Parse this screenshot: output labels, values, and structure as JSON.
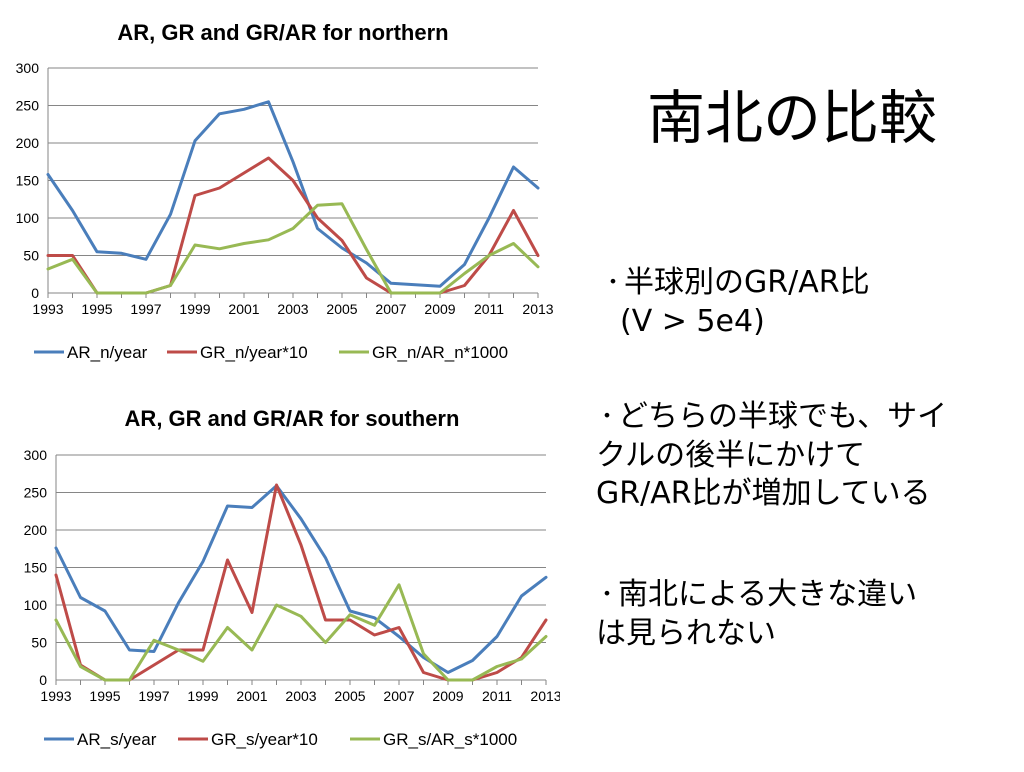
{
  "slide": {
    "title": "南北の比較",
    "bullet1_line1": "半球別のGR/AR比",
    "bullet1_line2": "(V > 5e4)",
    "bullet2_line1": "どちらの半球でも、サイ",
    "bullet2_line2": "クルの後半にかけて",
    "bullet2_line3": "GR/AR比が増加している",
    "bullet3_line1": "南北による大きな違い",
    "bullet3_line2": "は見られない",
    "bullet_marker": "・"
  },
  "chart_data": [
    {
      "type": "line",
      "title": "AR, GR and GR/AR for northern",
      "xlabel": "",
      "ylabel": "",
      "x": [
        1993,
        1994,
        1995,
        1996,
        1997,
        1998,
        1999,
        2000,
        2001,
        2002,
        2003,
        2004,
        2005,
        2006,
        2007,
        2008,
        2009,
        2010,
        2011,
        2012,
        2013
      ],
      "xticks": [
        "1993",
        "1995",
        "1997",
        "1999",
        "2001",
        "2003",
        "2005",
        "2007",
        "2009",
        "2011",
        "2013"
      ],
      "yticks": [
        "0",
        "50",
        "100",
        "150",
        "200",
        "250",
        "300"
      ],
      "ylim": [
        0,
        300
      ],
      "grid": true,
      "legend": "bottom",
      "series": [
        {
          "name": "AR_n/year",
          "color": "#4a7ebb",
          "values": [
            158,
            110,
            55,
            53,
            45,
            105,
            203,
            239,
            245,
            255,
            175,
            86,
            60,
            40,
            13,
            11,
            9,
            38,
            100,
            168,
            140
          ]
        },
        {
          "name": "GR_n/year*10",
          "color": "#be4b48",
          "values": [
            50,
            50,
            0,
            0,
            0,
            10,
            130,
            140,
            160,
            180,
            150,
            100,
            70,
            20,
            0,
            0,
            0,
            10,
            50,
            110,
            50
          ]
        },
        {
          "name": "GR_n/AR_n*1000",
          "color": "#98b954",
          "values": [
            32,
            45,
            0,
            0,
            0,
            10,
            64,
            59,
            66,
            71,
            86,
            117,
            119,
            58,
            0,
            0,
            0,
            26,
            50,
            66,
            35
          ]
        }
      ]
    },
    {
      "type": "line",
      "title": "AR, GR and GR/AR for southern",
      "xlabel": "",
      "ylabel": "",
      "x": [
        1993,
        1994,
        1995,
        1996,
        1997,
        1998,
        1999,
        2000,
        2001,
        2002,
        2003,
        2004,
        2005,
        2006,
        2007,
        2008,
        2009,
        2010,
        2011,
        2012,
        2013
      ],
      "xticks": [
        "1993",
        "1995",
        "1997",
        "1999",
        "2001",
        "2003",
        "2005",
        "2007",
        "2009",
        "2011",
        "2013"
      ],
      "yticks": [
        "0",
        "50",
        "100",
        "150",
        "200",
        "250",
        "300"
      ],
      "ylim": [
        0,
        300
      ],
      "grid": true,
      "legend": "bottom",
      "series": [
        {
          "name": "AR_s/year",
          "color": "#4a7ebb",
          "values": [
            176,
            110,
            92,
            40,
            38,
            103,
            158,
            232,
            230,
            259,
            215,
            163,
            92,
            83,
            58,
            30,
            10,
            26,
            58,
            112,
            137
          ]
        },
        {
          "name": "GR_s/year*10",
          "color": "#be4b48",
          "values": [
            140,
            20,
            0,
            0,
            20,
            40,
            40,
            160,
            90,
            260,
            180,
            80,
            80,
            60,
            70,
            10,
            0,
            0,
            10,
            30,
            80
          ]
        },
        {
          "name": "GR_s/AR_s*1000",
          "color": "#98b954",
          "values": [
            80,
            18,
            0,
            0,
            53,
            40,
            25,
            70,
            40,
            100,
            85,
            50,
            87,
            73,
            127,
            35,
            0,
            0,
            18,
            28,
            58
          ]
        }
      ]
    }
  ]
}
